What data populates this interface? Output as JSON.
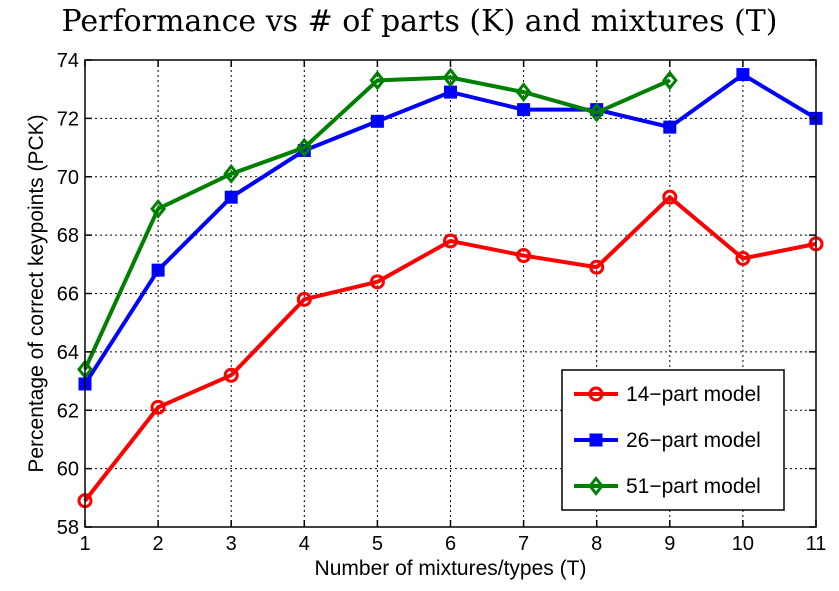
{
  "chart_data": {
    "type": "line",
    "title": "Performance vs # of parts (K) and mixtures (T)",
    "xlabel": "Number of mixtures/types (T)",
    "ylabel": "Percentage of correct keypoints (PCK)",
    "xlim": [
      1,
      11
    ],
    "ylim": [
      58,
      74
    ],
    "xticks": [
      1,
      2,
      3,
      4,
      5,
      6,
      7,
      8,
      9,
      10,
      11
    ],
    "yticks": [
      58,
      60,
      62,
      64,
      66,
      68,
      70,
      72,
      74
    ],
    "grid": true,
    "legend_position": "bottom-right",
    "series": [
      {
        "name": "14−part model",
        "color": "#ff0000",
        "marker": "circle",
        "x": [
          1,
          2,
          3,
          4,
          5,
          6,
          7,
          8,
          9,
          10,
          11
        ],
        "values": [
          58.9,
          62.1,
          63.2,
          65.8,
          66.4,
          67.8,
          67.3,
          66.9,
          69.3,
          67.2,
          67.7
        ]
      },
      {
        "name": "26−part model",
        "color": "#0000ff",
        "marker": "square",
        "x": [
          1,
          2,
          3,
          4,
          5,
          6,
          7,
          8,
          9,
          10,
          11
        ],
        "values": [
          62.9,
          66.8,
          69.3,
          70.9,
          71.9,
          72.9,
          72.3,
          72.3,
          71.7,
          73.5,
          72.0
        ]
      },
      {
        "name": "51−part model",
        "color": "#008000",
        "marker": "diamond",
        "x": [
          1,
          2,
          3,
          4,
          5,
          6,
          7,
          8,
          9
        ],
        "values": [
          63.4,
          68.9,
          70.1,
          71.0,
          73.3,
          73.4,
          72.9,
          72.2,
          73.3
        ]
      }
    ]
  }
}
